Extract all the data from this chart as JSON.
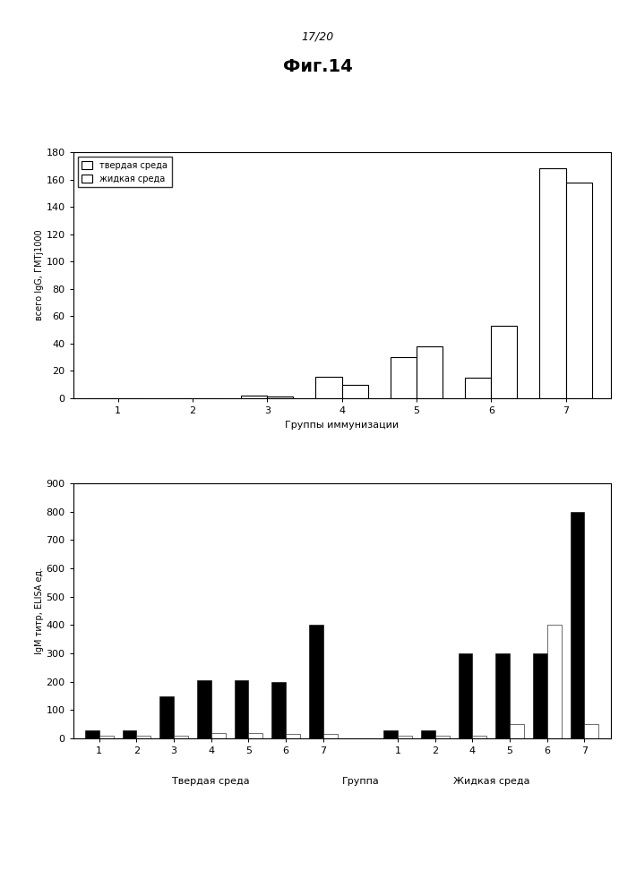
{
  "page_label": "17/20",
  "fig_title": "Фиг.14",
  "chart1": {
    "ylabel": "всего IgG, ГМТј1000",
    "xlabel": "Группы иммунизации",
    "groups": [
      1,
      2,
      3,
      4,
      5,
      6,
      7
    ],
    "series1_label": "твердая среда",
    "series2_label": "жидкая среда",
    "series1_values": [
      0,
      0,
      2,
      16,
      30,
      15,
      168
    ],
    "series2_values": [
      0,
      0,
      1,
      10,
      38,
      53,
      158
    ],
    "ylim": [
      0,
      180
    ],
    "yticks": [
      0,
      20,
      40,
      60,
      80,
      100,
      120,
      140,
      160,
      180
    ],
    "bar_width": 0.35
  },
  "chart2": {
    "ylabel": "IgM титр, ELISA ед.",
    "solid_labels": [
      "1",
      "2",
      "3",
      "4",
      "5",
      "6",
      "7"
    ],
    "liquid_labels": [
      "1",
      "2",
      "4",
      "5",
      "6",
      "7"
    ],
    "solid_dark": [
      30,
      30,
      150,
      205,
      205,
      200,
      400
    ],
    "solid_light": [
      10,
      10,
      10,
      20,
      20,
      15,
      15
    ],
    "liquid_dark": [
      30,
      30,
      300,
      300,
      300,
      800
    ],
    "liquid_light": [
      10,
      10,
      10,
      50,
      400,
      50
    ],
    "ylim": [
      0,
      900
    ],
    "yticks": [
      0,
      100,
      200,
      300,
      400,
      500,
      600,
      700,
      800,
      900
    ],
    "section_solid": "Твердая среда",
    "section_group": "Группа",
    "section_liquid": "Жидкая среда"
  },
  "bg_color": "white",
  "text_color": "black",
  "font_size": 8,
  "title_font_size": 14
}
